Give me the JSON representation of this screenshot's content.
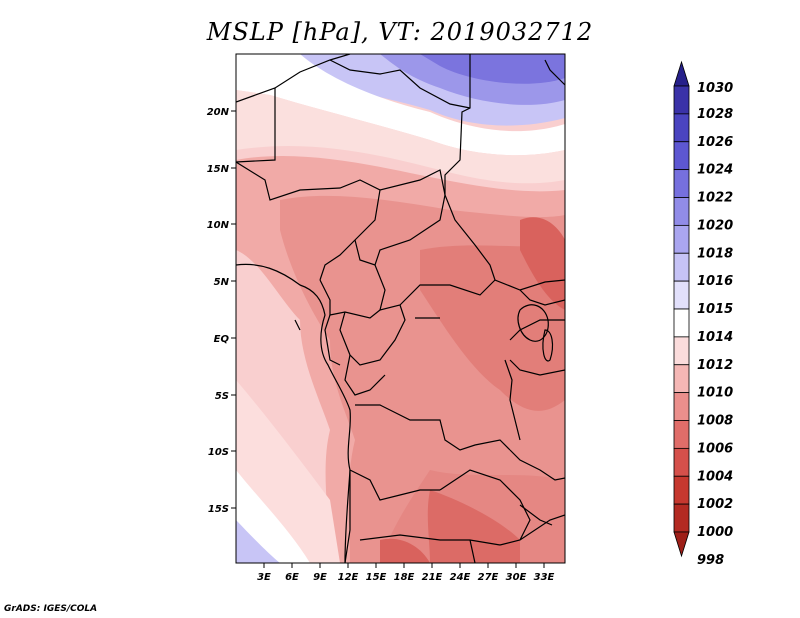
{
  "title": "MSLP [hPa], VT: 2019032712",
  "credit": "GrADS: IGES/COLA",
  "map": {
    "lat_labels": [
      "20N",
      "15N",
      "10N",
      "5N",
      "EQ",
      "5S",
      "10S",
      "15S"
    ],
    "lon_labels": [
      "3E",
      "6E",
      "9E",
      "12E",
      "15E",
      "18E",
      "21E",
      "24E",
      "27E",
      "30E",
      "33E"
    ]
  },
  "colorbar": {
    "levels": [
      "1030",
      "1028",
      "1026",
      "1024",
      "1022",
      "1020",
      "1018",
      "1016",
      "1015",
      "1014",
      "1012",
      "1010",
      "1008",
      "1006",
      "1004",
      "1002",
      "1000",
      "998"
    ],
    "colors": [
      "#26208a",
      "#3a32a8",
      "#4a44c0",
      "#5d57d2",
      "#7670de",
      "#918ce8",
      "#aaa6f0",
      "#c6c3f6",
      "#e2e0fb",
      "#ffffff",
      "#fbdcdc",
      "#f5b7b5",
      "#eb8f8c",
      "#e06d69",
      "#d5504b",
      "#c6382f",
      "#b32a22",
      "#9e1f18"
    ]
  }
}
